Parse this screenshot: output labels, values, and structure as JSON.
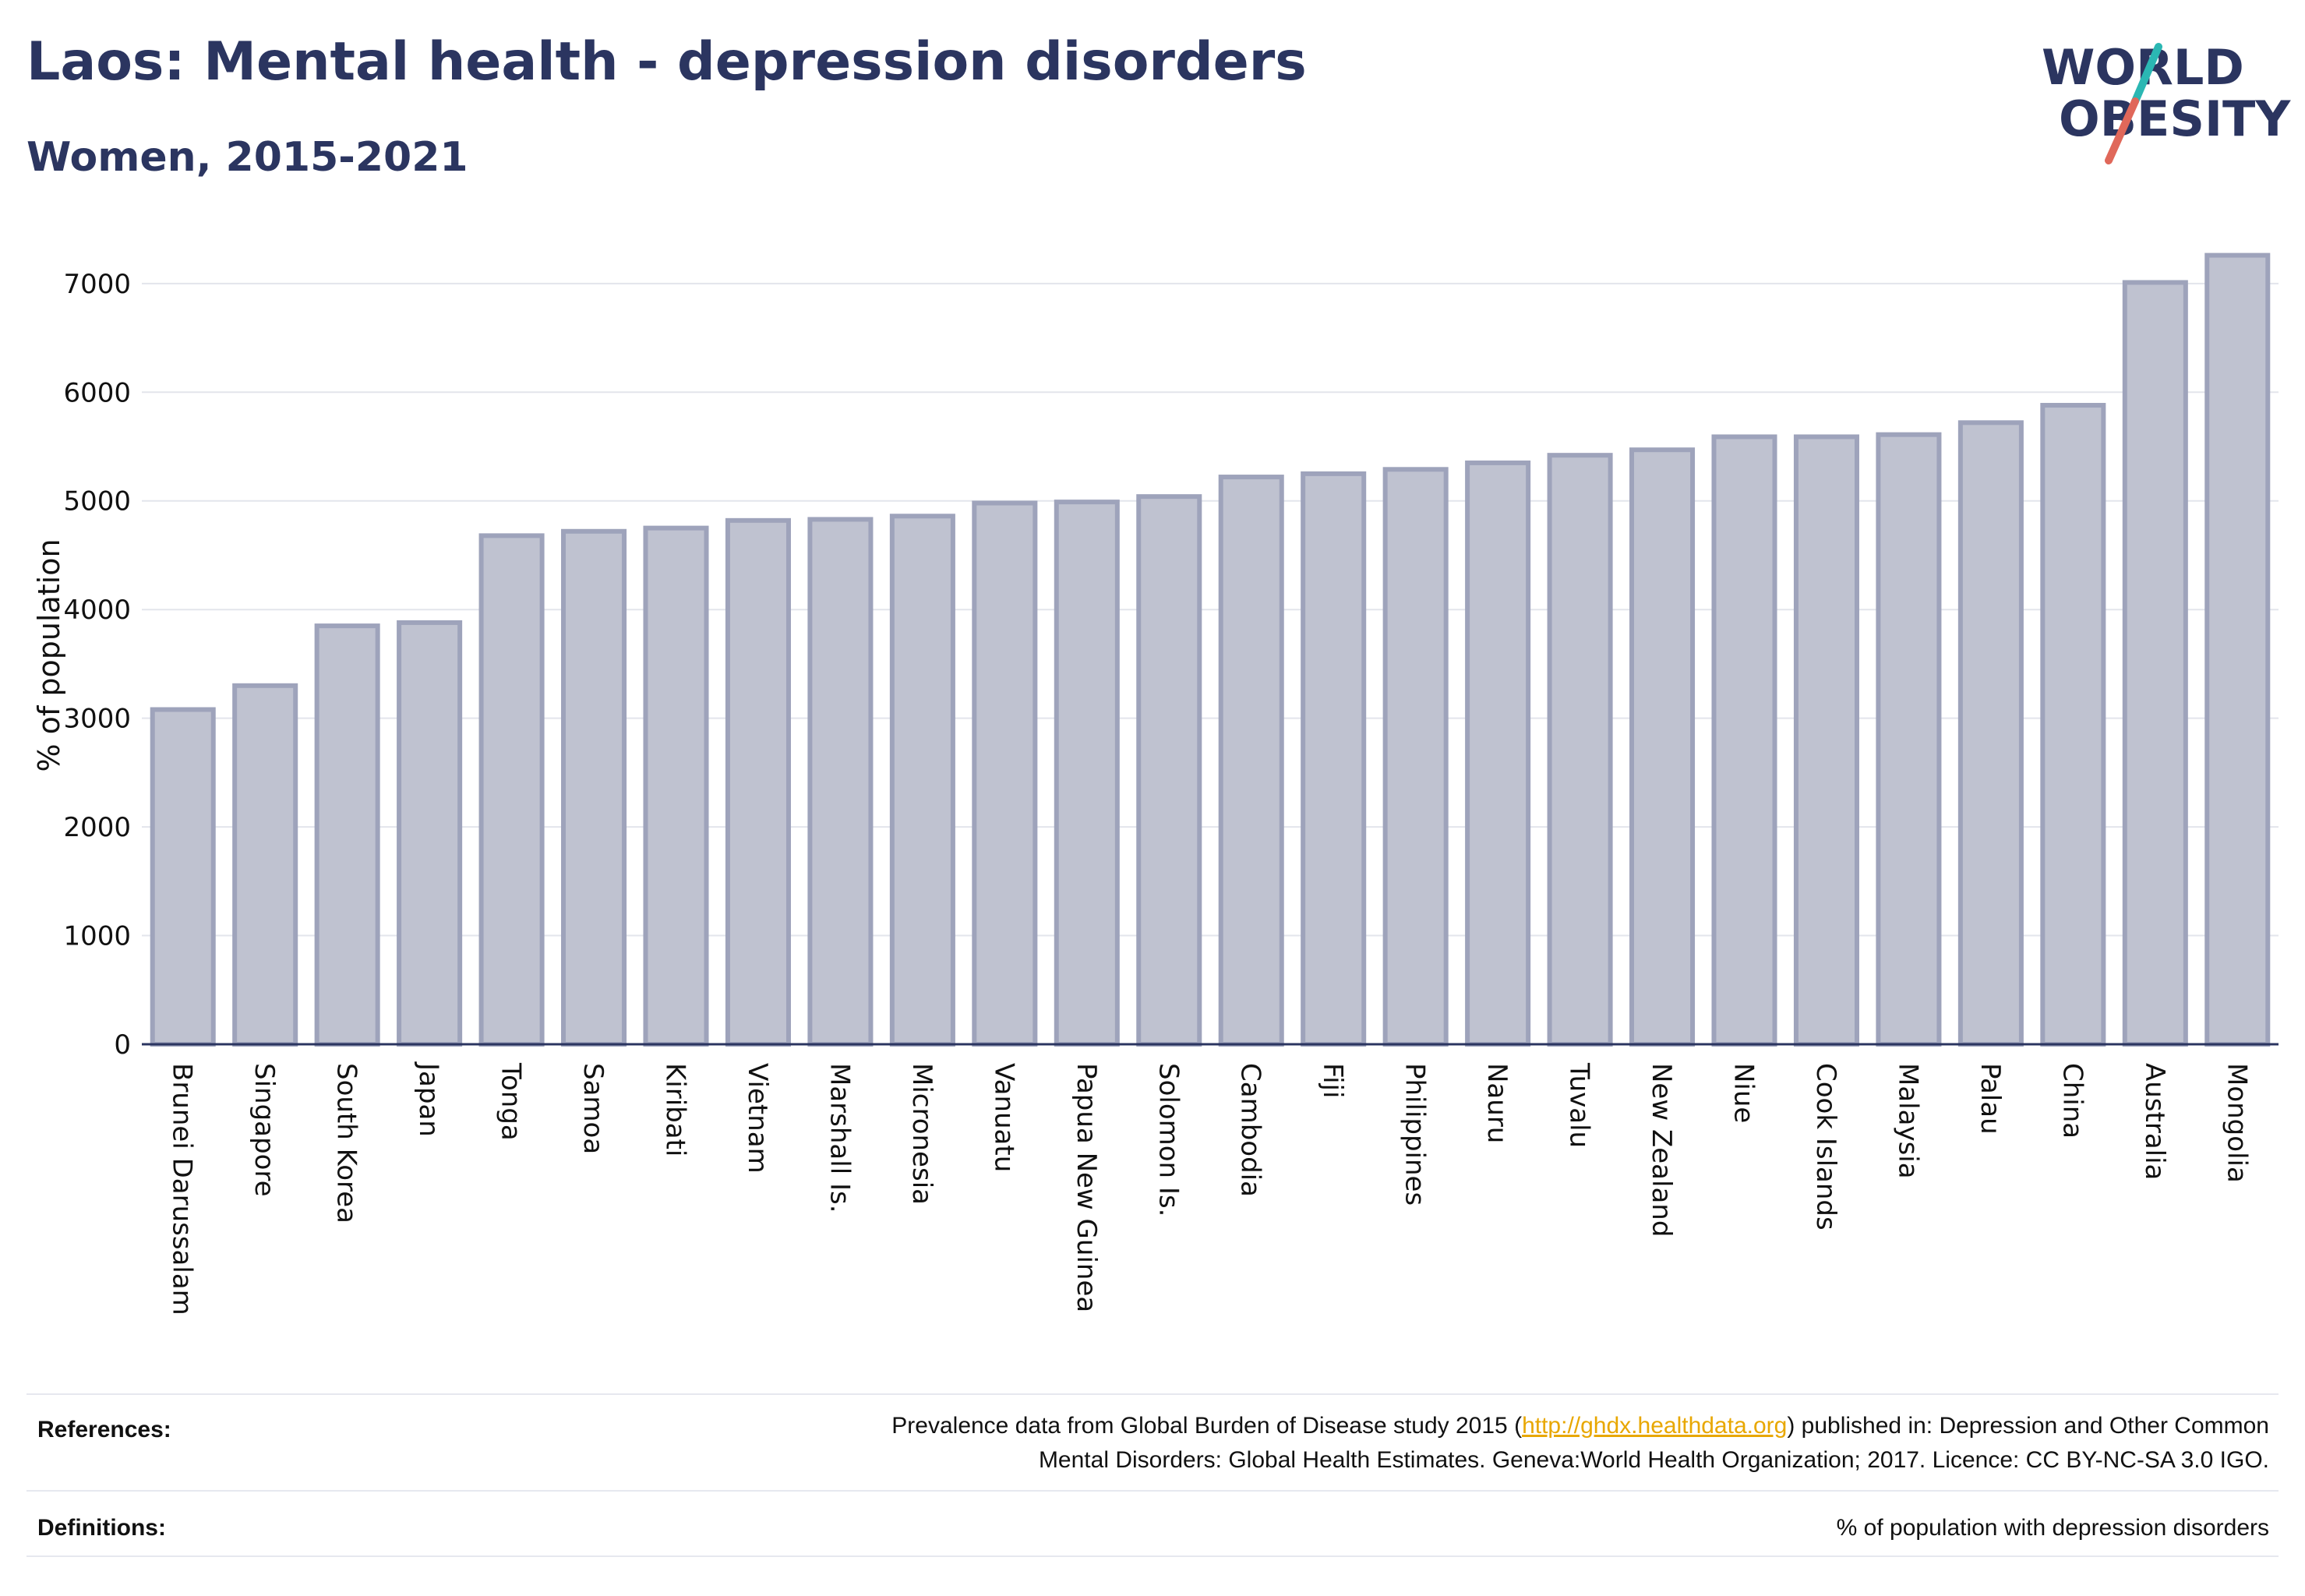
{
  "header": {
    "title": "Laos: Mental health - depression disorders",
    "subtitle": "Women, 2015-2021"
  },
  "logo": {
    "line1": "WORLD",
    "line2": "OBESITY",
    "colors": {
      "text": "#2b3560",
      "slash_teal": "#2bb7b3",
      "slash_red": "#e0685a"
    }
  },
  "chart_data": {
    "type": "bar",
    "ylabel": "% of population",
    "xlabel": "",
    "ylim": [
      0,
      7300
    ],
    "yticks": [
      0,
      1000,
      2000,
      3000,
      4000,
      5000,
      6000,
      7000
    ],
    "grid": true,
    "categories": [
      "Brunei Darussalam",
      "Singapore",
      "South Korea",
      "Japan",
      "Tonga",
      "Samoa",
      "Kiribati",
      "Vietnam",
      "Marshall Is.",
      "Micronesia",
      "Vanuatu",
      "Papua New Guinea",
      "Solomon Is.",
      "Cambodia",
      "Fiji",
      "Philippines",
      "Nauru",
      "Tuvalu",
      "New Zealand",
      "Niue",
      "Cook Islands",
      "Malaysia",
      "Palau",
      "China",
      "Australia",
      "Mongolia"
    ],
    "values": [
      3080,
      3300,
      3850,
      3880,
      4680,
      4720,
      4750,
      4820,
      4830,
      4860,
      4980,
      4990,
      5040,
      5220,
      5250,
      5290,
      5350,
      5420,
      5470,
      5590,
      5590,
      5610,
      5720,
      5880,
      7010,
      7260
    ],
    "colors": {
      "bar_fill": "#bfc2d0",
      "bar_stroke": "#9ea3bb",
      "grid": "#e3e5ec",
      "axis": "#2b3560"
    }
  },
  "footer": {
    "references_label": "References:",
    "references_text_before": "Prevalence data from Global Burden of Disease study 2015 (",
    "references_link": "http://ghdx.healthdata.org",
    "references_text_after_1": ") published in: Depression and Other Common",
    "references_text_line2": "Mental Disorders: Global Health Estimates. Geneva:World Health Organization; 2017. Licence: CC BY-NC-SA 3.0 IGO.",
    "definitions_label": "Definitions:",
    "definitions_text": "% of population with depression disorders",
    "link_color": "#e8a700"
  }
}
